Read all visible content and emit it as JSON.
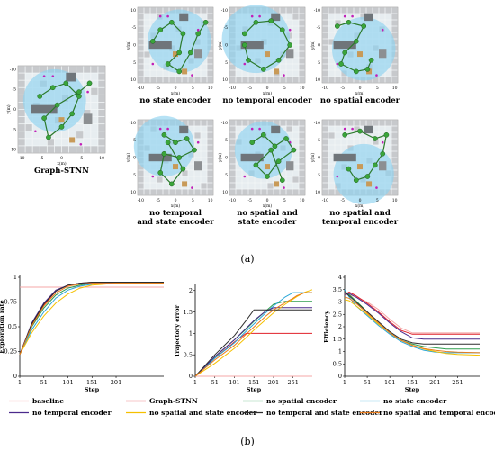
{
  "panel_a": {
    "label": "(a)",
    "axis_x_label": "x(m)",
    "axis_y_label": "y(m)",
    "ticks": [
      "-10",
      "-5",
      "0",
      "5",
      "10"
    ],
    "maps": [
      {
        "caption": "Graph-STNN",
        "lines": [
          "Graph-STNN"
        ]
      },
      {
        "caption": "no state encoder",
        "lines": [
          "no state encoder"
        ]
      },
      {
        "caption": "no temporal encoder",
        "lines": [
          "no temporal encoder"
        ]
      },
      {
        "caption": "no spatial encoder",
        "lines": [
          "no spatial encoder"
        ]
      },
      {
        "caption": "no temporal and state encoder",
        "lines": [
          "no temporal",
          "and state encoder"
        ]
      },
      {
        "caption": "no spatial and state encoder",
        "lines": [
          "no spatial and",
          "state encoder"
        ]
      },
      {
        "caption": "no spatial and temporal encoder",
        "lines": [
          "no spatial and",
          "temporal encoder"
        ]
      }
    ]
  },
  "panel_b": {
    "label": "(b)",
    "legend": [
      {
        "label": "baseline",
        "color": "#f4a7a7",
        "key": "baseline"
      },
      {
        "label": "Graph-STNN",
        "color": "#e0202a",
        "key": "graph_stnn"
      },
      {
        "label": "no spatial encoder",
        "color": "#2e9e4f",
        "key": "no_spatial"
      },
      {
        "label": "no state encoder",
        "color": "#2aa7d8",
        "key": "no_state"
      },
      {
        "label": "no temporal encoder",
        "color": "#4b2a8c",
        "key": "no_temporal"
      },
      {
        "label": "no spatial and state encoder",
        "color": "#f5c000",
        "key": "no_spatial_state"
      },
      {
        "label": "no temporal and state encoder",
        "color": "#2d2d2d",
        "key": "no_temporal_state"
      },
      {
        "label": "no spatial and temporal encoder",
        "color": "#e87c1e",
        "key": "no_spatial_temporal"
      }
    ]
  },
  "chart_data": [
    {
      "type": "line",
      "xlabel": "Step",
      "ylabel": "Exploration rate",
      "xlim": [
        1,
        300
      ],
      "ylim": [
        0,
        1
      ],
      "xticks": [
        "1",
        "51",
        "101",
        "151",
        "201"
      ],
      "yticks": [
        "0",
        "0.25",
        "0.5",
        "0.75",
        "1"
      ],
      "x": [
        1,
        26,
        51,
        76,
        101,
        126,
        151,
        176,
        201,
        251,
        300
      ],
      "series": [
        {
          "name": "baseline",
          "values": [
            0.9,
            0.9,
            0.9,
            0.9,
            0.9,
            0.9,
            0.9,
            0.9,
            0.9,
            0.9,
            0.9
          ]
        },
        {
          "name": "Graph-STNN",
          "values": [
            0.22,
            0.52,
            0.72,
            0.86,
            0.92,
            0.94,
            0.95,
            0.95,
            0.95,
            0.95,
            0.95
          ]
        },
        {
          "name": "no spatial encoder",
          "values": [
            0.22,
            0.5,
            0.69,
            0.82,
            0.89,
            0.92,
            0.94,
            0.94,
            0.94,
            0.94,
            0.94
          ]
        },
        {
          "name": "no state encoder",
          "values": [
            0.22,
            0.47,
            0.65,
            0.79,
            0.87,
            0.91,
            0.93,
            0.94,
            0.94,
            0.94,
            0.94
          ]
        },
        {
          "name": "no temporal encoder",
          "values": [
            0.22,
            0.54,
            0.74,
            0.87,
            0.92,
            0.94,
            0.94,
            0.94,
            0.94,
            0.94,
            0.94
          ]
        },
        {
          "name": "no spatial and state encoder",
          "values": [
            0.22,
            0.44,
            0.61,
            0.74,
            0.83,
            0.89,
            0.92,
            0.93,
            0.94,
            0.94,
            0.94
          ]
        },
        {
          "name": "no temporal and state encoder",
          "values": [
            0.22,
            0.53,
            0.73,
            0.86,
            0.92,
            0.94,
            0.95,
            0.95,
            0.95,
            0.95,
            0.95
          ]
        },
        {
          "name": "no spatial and temporal encoder",
          "values": [
            0.22,
            0.51,
            0.71,
            0.84,
            0.91,
            0.93,
            0.94,
            0.94,
            0.94,
            0.94,
            0.94
          ]
        }
      ]
    },
    {
      "type": "line",
      "xlabel": "Step",
      "ylabel": "Trajectory error",
      "xlim": [
        1,
        300
      ],
      "ylim": [
        0,
        2.1
      ],
      "xticks": [
        "1",
        "51",
        "101",
        "151",
        "201",
        "251"
      ],
      "yticks": [
        "0",
        "0.5",
        "1",
        "1.5",
        "2"
      ],
      "x": [
        1,
        51,
        101,
        131,
        151,
        181,
        201,
        231,
        251,
        261,
        281,
        300
      ],
      "series": [
        {
          "name": "baseline",
          "values": [
            0,
            0,
            0,
            0,
            0,
            0,
            0,
            0,
            0,
            0,
            0,
            0
          ]
        },
        {
          "name": "Graph-STNN",
          "values": [
            0,
            0.42,
            0.8,
            1.0,
            1.0,
            1.0,
            1.0,
            1.0,
            1.0,
            1.0,
            1.0,
            1.0
          ]
        },
        {
          "name": "no spatial encoder",
          "values": [
            0,
            0.45,
            0.85,
            1.1,
            1.28,
            1.52,
            1.68,
            1.75,
            1.75,
            1.75,
            1.75,
            1.75
          ]
        },
        {
          "name": "no state encoder",
          "values": [
            0,
            0.42,
            0.78,
            1.05,
            1.22,
            1.48,
            1.64,
            1.85,
            1.95,
            1.95,
            1.95,
            1.95
          ]
        },
        {
          "name": "no temporal encoder",
          "values": [
            0,
            0.46,
            0.85,
            1.12,
            1.3,
            1.52,
            1.6,
            1.6,
            1.6,
            1.6,
            1.6,
            1.6
          ]
        },
        {
          "name": "no spatial and state encoder",
          "values": [
            0,
            0.3,
            0.65,
            0.9,
            1.08,
            1.32,
            1.48,
            1.68,
            1.8,
            1.86,
            1.96,
            2.02
          ]
        },
        {
          "name": "no temporal and state encoder",
          "values": [
            0,
            0.5,
            0.95,
            1.3,
            1.55,
            1.55,
            1.55,
            1.55,
            1.55,
            1.55,
            1.55,
            1.55
          ]
        },
        {
          "name": "no spatial and temporal encoder",
          "values": [
            0,
            0.38,
            0.72,
            0.98,
            1.15,
            1.4,
            1.55,
            1.72,
            1.82,
            1.88,
            1.95,
            1.95
          ]
        }
      ]
    },
    {
      "type": "line",
      "xlabel": "Step",
      "ylabel": "Efficiency",
      "xlim": [
        1,
        300
      ],
      "ylim": [
        0,
        4
      ],
      "xticks": [
        "1",
        "51",
        "101",
        "151",
        "201",
        "251"
      ],
      "yticks": [
        "0",
        "0.5",
        "1",
        "1.5",
        "2",
        "2.5",
        "3",
        "3.5",
        "4"
      ],
      "x": [
        1,
        11,
        26,
        51,
        76,
        101,
        126,
        151,
        176,
        201,
        226,
        251,
        300
      ],
      "series": [
        {
          "name": "baseline",
          "values": [
            3.3,
            3.3,
            3.2,
            3.0,
            2.7,
            2.3,
            1.95,
            1.75,
            1.75,
            1.75,
            1.75,
            1.75,
            1.75
          ]
        },
        {
          "name": "Graph-STNN",
          "values": [
            3.3,
            3.4,
            3.25,
            2.95,
            2.6,
            2.2,
            1.85,
            1.7,
            1.7,
            1.7,
            1.7,
            1.7,
            1.7
          ]
        },
        {
          "name": "no spatial encoder",
          "values": [
            3.4,
            3.3,
            3.05,
            2.6,
            2.15,
            1.75,
            1.45,
            1.3,
            1.2,
            1.15,
            1.1,
            1.1,
            1.1
          ]
        },
        {
          "name": "no state encoder",
          "values": [
            3.5,
            3.2,
            2.85,
            2.45,
            2.05,
            1.7,
            1.4,
            1.2,
            1.05,
            0.98,
            0.95,
            0.95,
            0.95
          ]
        },
        {
          "name": "no temporal encoder",
          "values": [
            3.3,
            3.35,
            3.2,
            2.9,
            2.55,
            2.15,
            1.8,
            1.55,
            1.5,
            1.5,
            1.5,
            1.5,
            1.5
          ]
        },
        {
          "name": "no spatial and state encoder",
          "values": [
            3.1,
            3.05,
            2.85,
            2.5,
            2.1,
            1.75,
            1.45,
            1.25,
            1.1,
            1.0,
            0.92,
            0.88,
            0.85
          ]
        },
        {
          "name": "no temporal and state encoder",
          "values": [
            3.4,
            3.25,
            3.0,
            2.6,
            2.2,
            1.8,
            1.5,
            1.35,
            1.3,
            1.3,
            1.3,
            1.3,
            1.3
          ]
        },
        {
          "name": "no spatial and temporal encoder",
          "values": [
            3.2,
            3.15,
            2.95,
            2.55,
            2.15,
            1.75,
            1.45,
            1.25,
            1.12,
            1.05,
            1.0,
            0.97,
            0.95
          ]
        }
      ]
    }
  ]
}
